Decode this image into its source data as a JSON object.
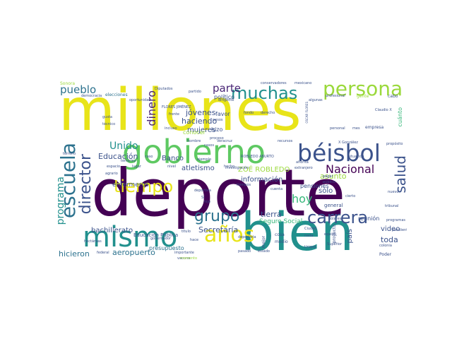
{
  "word_cloud": {
    "palette": {
      "c1": "#e8e419",
      "c2": "#440154",
      "c3": "#21908d",
      "c4": "#3b528b",
      "c5": "#5ec962",
      "c6": "#9bd93c",
      "c7": "#2c728e",
      "c8": "#31688e",
      "c9": "#b5de2b",
      "c10": "#482475",
      "c11": "#35b779"
    },
    "words": [
      "deporte",
      "millones",
      "bien",
      "gobierno",
      "béisbol",
      "mismo",
      "persona",
      "escuela",
      "muchas",
      "años",
      "carrera",
      "tiempo",
      "grupo",
      "director",
      "salud",
      "pueblo",
      "parte",
      "Nacional",
      "hoy",
      "dinero",
      "programa",
      "Unido",
      "Educación",
      "haciendo",
      "ZOÉ ROBLEDO",
      "información",
      "Secretaría",
      "atletismo",
      "tierra",
      "jóvenes",
      "mujeres",
      "aeropuerto",
      "hicieron",
      "bachillerato",
      "enfermeros",
      "Seguro Social",
      "asunto",
      "sólo",
      "toda",
      "video",
      "país",
      "Banco",
      "político",
      "presupuesto",
      "Educación Pública",
      "pensiones",
      "reunión",
      "general",
      "conocer",
      "hizo",
      "favor",
      "cuánto",
      "empresa",
      "Sonora",
      "elecciones",
      "Diputados",
      "partido",
      "democracia",
      "gusta",
      "técnico",
      "conservadores",
      "mexicano",
      "profesional",
      "gente",
      "cabo",
      "Claudio X",
      "OSCAR FLORES",
      "FLORES JIMÉNEZ",
      "oportunidad",
      "proceso",
      "hombre",
      "casos",
      "mejor",
      "cosa",
      "Ciudad",
      "equipo",
      "proyecto",
      "Poder",
      "Superior",
      "Urique",
      "federal",
      "importante",
      "vacuna",
      "título",
      "deportista",
      "medio",
      "nivel",
      "hecho",
      "espacio",
      "agrario",
      "terreno",
      "X González",
      "propósito",
      "colonia",
      "nuevo",
      "cierto",
      "público",
      "pagar",
      "ahorita",
      "extranjero",
      "fondo",
      "derecho",
      "personal",
      "incluso",
      "investigación",
      "Veracruz",
      "pesos",
      "dirigente",
      "algunas",
      "mes",
      "caso",
      "ley",
      "tema",
      "programas",
      "pendiente",
      "tribunal",
      "estado",
      "pasado",
      "lugar",
      "momento",
      "ejemplo",
      "ROBLEDO ABURTO",
      "frente",
      "tiempos",
      "deportiva",
      "Sí",
      "hijo",
      "cuenta",
      "dólares",
      "nada",
      "hace",
      "gobernador",
      "hectáreas",
      "recursos",
      "situación",
      "mundo",
      "obras",
      "acuerdo"
    ]
  }
}
